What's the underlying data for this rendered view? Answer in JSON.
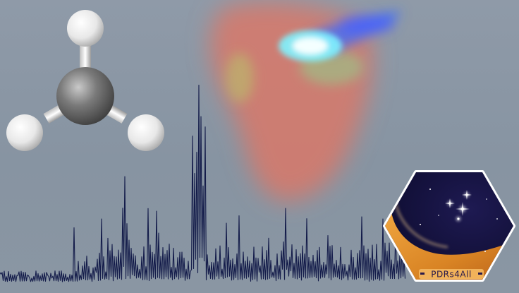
{
  "scene": {
    "background_color": "#8a96a3",
    "molecule": {
      "name": "methyl-radical",
      "center_atom": "carbon",
      "hydrogen_count": 3,
      "carbon_color": "#6f6f6f",
      "hydrogen_color": "#f2f2f2"
    },
    "nebula": {
      "outer_color": "#d8786a",
      "core_color": "#cfffff",
      "jet_color": "#3a6cff"
    },
    "spectrum": {
      "line_color": "#141c4a"
    },
    "logo": {
      "label": "PDRs4All",
      "background_color": "#14113a",
      "arc_color": "#e89a2c",
      "border_color": "#ffffff"
    }
  }
}
